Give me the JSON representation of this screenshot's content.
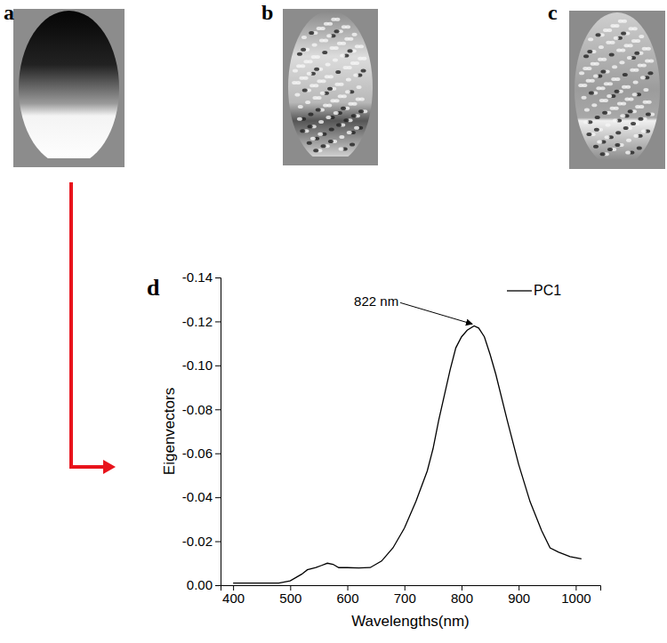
{
  "panels": [
    "a",
    "b",
    "c"
  ],
  "chart_data": {
    "type": "line",
    "title": "d",
    "x_label": "Wavelengths(nm)",
    "y_label": "Eigenvectors",
    "x": [
      400,
      450,
      480,
      500,
      520,
      530,
      545,
      555,
      565,
      575,
      585,
      600,
      620,
      640,
      660,
      680,
      700,
      720,
      740,
      750,
      760,
      780,
      790,
      800,
      810,
      822,
      830,
      840,
      850,
      860,
      880,
      900,
      920,
      940,
      955,
      970,
      990,
      1010
    ],
    "series": [
      {
        "name": "PC1",
        "color": "#000000",
        "values": [
          -0.001,
          -0.001,
          -0.001,
          -0.002,
          -0.005,
          -0.007,
          -0.008,
          -0.009,
          -0.01,
          -0.0095,
          -0.008,
          -0.008,
          -0.0078,
          -0.008,
          -0.011,
          -0.017,
          -0.026,
          -0.038,
          -0.052,
          -0.062,
          -0.075,
          -0.098,
          -0.108,
          -0.113,
          -0.116,
          -0.118,
          -0.117,
          -0.113,
          -0.105,
          -0.096,
          -0.075,
          -0.055,
          -0.038,
          -0.025,
          -0.017,
          -0.015,
          -0.013,
          -0.012
        ]
      }
    ],
    "xlim": [
      378,
      1043
    ],
    "ylim": [
      0,
      -0.14
    ],
    "xticks": [
      400,
      500,
      600,
      700,
      800,
      900,
      1000
    ],
    "yticks": [
      {
        "value": 0,
        "label": "0.00"
      },
      {
        "value": -0.02,
        "label": "-0.02"
      },
      {
        "value": -0.04,
        "label": "-0.04"
      },
      {
        "value": -0.06,
        "label": "-0.06"
      },
      {
        "value": -0.08,
        "label": "-0.08"
      },
      {
        "value": -0.1,
        "label": "-0.10"
      },
      {
        "value": -0.12,
        "label": "-0.12"
      },
      {
        "value": -0.14,
        "label": "-0.14"
      }
    ],
    "annotations": [
      {
        "text": "822 nm",
        "x": 822,
        "y": -0.118
      }
    ],
    "legend": "upper right",
    "grid": false
  }
}
